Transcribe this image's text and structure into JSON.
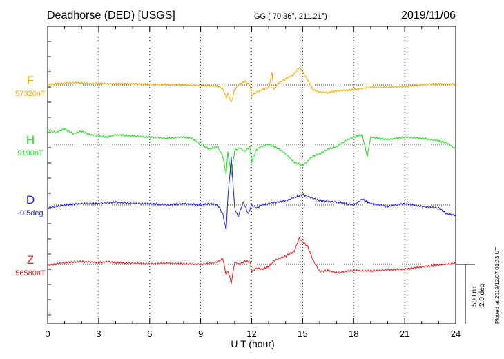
{
  "header": {
    "station": "Deadhorse (DED)  [USGS]",
    "coords": "GG ( 70.36°, 211.21°)",
    "date": "2019/11/06"
  },
  "plotted_note": "Plotted at 2019/12/07 01:33 UT",
  "scale_bar": {
    "nt": "500 nT",
    "deg": "2.0 deg"
  },
  "chart_data": {
    "type": "line",
    "title": "Deadhorse (DED)  [USGS]",
    "xlabel": "U T (hour)",
    "ylabel": "",
    "xlim": [
      0,
      24
    ],
    "x_ticks": [
      0,
      3,
      6,
      9,
      12,
      15,
      18,
      21,
      24
    ],
    "x_tick_labels": [
      "0",
      "3",
      "6",
      "9",
      "12",
      "15",
      "18",
      "21",
      "24"
    ],
    "grid": true,
    "series": [
      {
        "name": "F",
        "baseline_label": "57320nT",
        "color": "#f5a800",
        "offset_unit": "nT",
        "points": [
          [
            0,
            0
          ],
          [
            0.5,
            10
          ],
          [
            1,
            15
          ],
          [
            1.5,
            20
          ],
          [
            2,
            18
          ],
          [
            2.5,
            12
          ],
          [
            3,
            15
          ],
          [
            3.5,
            10
          ],
          [
            4,
            12
          ],
          [
            5,
            10
          ],
          [
            6,
            5
          ],
          [
            7,
            3
          ],
          [
            8,
            0
          ],
          [
            9,
            -5
          ],
          [
            9.5,
            -8
          ],
          [
            10,
            -10
          ],
          [
            10.3,
            -30
          ],
          [
            10.5,
            -110
          ],
          [
            10.6,
            -70
          ],
          [
            10.8,
            -150
          ],
          [
            11,
            -40
          ],
          [
            11.3,
            10
          ],
          [
            11.6,
            30
          ],
          [
            11.9,
            0
          ],
          [
            12,
            -90
          ],
          [
            12.3,
            -60
          ],
          [
            12.6,
            -40
          ],
          [
            13,
            -20
          ],
          [
            13.2,
            100
          ],
          [
            13.3,
            -40
          ],
          [
            13.6,
            20
          ],
          [
            14,
            50
          ],
          [
            14.5,
            90
          ],
          [
            14.8,
            150
          ],
          [
            15,
            110
          ],
          [
            15.3,
            40
          ],
          [
            15.6,
            -40
          ],
          [
            16,
            -60
          ],
          [
            16.5,
            -65
          ],
          [
            17,
            -50
          ],
          [
            18,
            -40
          ],
          [
            18.5,
            -30
          ],
          [
            19,
            -20
          ],
          [
            20,
            -20
          ],
          [
            21,
            -15
          ],
          [
            22,
            0
          ],
          [
            23,
            10
          ],
          [
            24,
            5
          ]
        ]
      },
      {
        "name": "H",
        "baseline_label": "9190nT",
        "color": "#22dd22",
        "offset_unit": "nT",
        "points": [
          [
            0,
            120
          ],
          [
            0.5,
            100
          ],
          [
            1,
            130
          ],
          [
            1.5,
            90
          ],
          [
            2,
            110
          ],
          [
            2.5,
            80
          ],
          [
            3,
            70
          ],
          [
            3.5,
            60
          ],
          [
            4,
            80
          ],
          [
            5,
            70
          ],
          [
            6,
            60
          ],
          [
            7,
            50
          ],
          [
            8,
            60
          ],
          [
            8.5,
            50
          ],
          [
            9,
            0
          ],
          [
            9.5,
            -40
          ],
          [
            10,
            -20
          ],
          [
            10.3,
            -100
          ],
          [
            10.5,
            -250
          ],
          [
            10.6,
            -60
          ],
          [
            10.8,
            -270
          ],
          [
            11,
            -50
          ],
          [
            11.3,
            -30
          ],
          [
            11.6,
            -60
          ],
          [
            11.9,
            -20
          ],
          [
            12,
            -150
          ],
          [
            12.3,
            -40
          ],
          [
            12.6,
            -20
          ],
          [
            13,
            0
          ],
          [
            13.5,
            -30
          ],
          [
            14,
            -80
          ],
          [
            14.5,
            -150
          ],
          [
            15,
            -180
          ],
          [
            15.3,
            -140
          ],
          [
            15.6,
            -100
          ],
          [
            16,
            -80
          ],
          [
            16.5,
            -40
          ],
          [
            17,
            -20
          ],
          [
            17.5,
            30
          ],
          [
            18,
            60
          ],
          [
            18.5,
            80
          ],
          [
            18.8,
            -100
          ],
          [
            19,
            60
          ],
          [
            20,
            40
          ],
          [
            21,
            60
          ],
          [
            22,
            50
          ],
          [
            23,
            30
          ],
          [
            23.5,
            10
          ],
          [
            24,
            -40
          ]
        ]
      },
      {
        "name": "D",
        "baseline_label": "-0.5deg",
        "color": "#1e1ee0",
        "offset_unit": "deg",
        "points": [
          [
            0,
            -0.1
          ],
          [
            1,
            0.0
          ],
          [
            2,
            0.05
          ],
          [
            3,
            0.05
          ],
          [
            4,
            0.1
          ],
          [
            5,
            0.05
          ],
          [
            6,
            0.05
          ],
          [
            7,
            0.0
          ],
          [
            8,
            0.05
          ],
          [
            9,
            0.0
          ],
          [
            9.5,
            0.05
          ],
          [
            10,
            0.0
          ],
          [
            10.3,
            -0.3
          ],
          [
            10.5,
            -0.85
          ],
          [
            10.6,
            0.25
          ],
          [
            10.8,
            1.6
          ],
          [
            11,
            -0.1
          ],
          [
            11.2,
            -0.4
          ],
          [
            11.5,
            0.1
          ],
          [
            11.8,
            -0.3
          ],
          [
            12,
            0.0
          ],
          [
            12.3,
            -0.1
          ],
          [
            12.6,
            0.0
          ],
          [
            13,
            0.05
          ],
          [
            14,
            0.15
          ],
          [
            15,
            0.35
          ],
          [
            15.5,
            0.25
          ],
          [
            16,
            0.15
          ],
          [
            17,
            0.1
          ],
          [
            18,
            0.0
          ],
          [
            18.5,
            0.2
          ],
          [
            19,
            0.05
          ],
          [
            20,
            -0.05
          ],
          [
            21,
            0.05
          ],
          [
            22,
            -0.05
          ],
          [
            23,
            -0.1
          ],
          [
            23.5,
            -0.3
          ],
          [
            24,
            -0.35
          ]
        ]
      },
      {
        "name": "Z",
        "baseline_label": "56580nT",
        "color": "#e81b1b",
        "offset_unit": "nT",
        "points": [
          [
            0,
            -10
          ],
          [
            0.5,
            5
          ],
          [
            1,
            15
          ],
          [
            1.5,
            20
          ],
          [
            2,
            25
          ],
          [
            3,
            15
          ],
          [
            3.5,
            25
          ],
          [
            4,
            15
          ],
          [
            5,
            10
          ],
          [
            6,
            5
          ],
          [
            7,
            10
          ],
          [
            8,
            5
          ],
          [
            9,
            0
          ],
          [
            9.5,
            10
          ],
          [
            10,
            20
          ],
          [
            10.3,
            50
          ],
          [
            10.5,
            -90
          ],
          [
            10.6,
            -50
          ],
          [
            10.8,
            -160
          ],
          [
            11,
            20
          ],
          [
            11.3,
            0
          ],
          [
            11.6,
            30
          ],
          [
            11.9,
            20
          ],
          [
            12,
            -60
          ],
          [
            12.3,
            -30
          ],
          [
            12.6,
            -40
          ],
          [
            13,
            -20
          ],
          [
            13.3,
            30
          ],
          [
            13.6,
            50
          ],
          [
            14,
            70
          ],
          [
            14.5,
            110
          ],
          [
            14.8,
            220
          ],
          [
            15,
            190
          ],
          [
            15.3,
            150
          ],
          [
            15.6,
            40
          ],
          [
            16,
            -60
          ],
          [
            16.5,
            -50
          ],
          [
            17,
            -70
          ],
          [
            18,
            -50
          ],
          [
            19,
            -55
          ],
          [
            20,
            -45
          ],
          [
            21,
            -40
          ],
          [
            22,
            -20
          ],
          [
            23,
            -5
          ],
          [
            24,
            10
          ]
        ]
      }
    ]
  }
}
